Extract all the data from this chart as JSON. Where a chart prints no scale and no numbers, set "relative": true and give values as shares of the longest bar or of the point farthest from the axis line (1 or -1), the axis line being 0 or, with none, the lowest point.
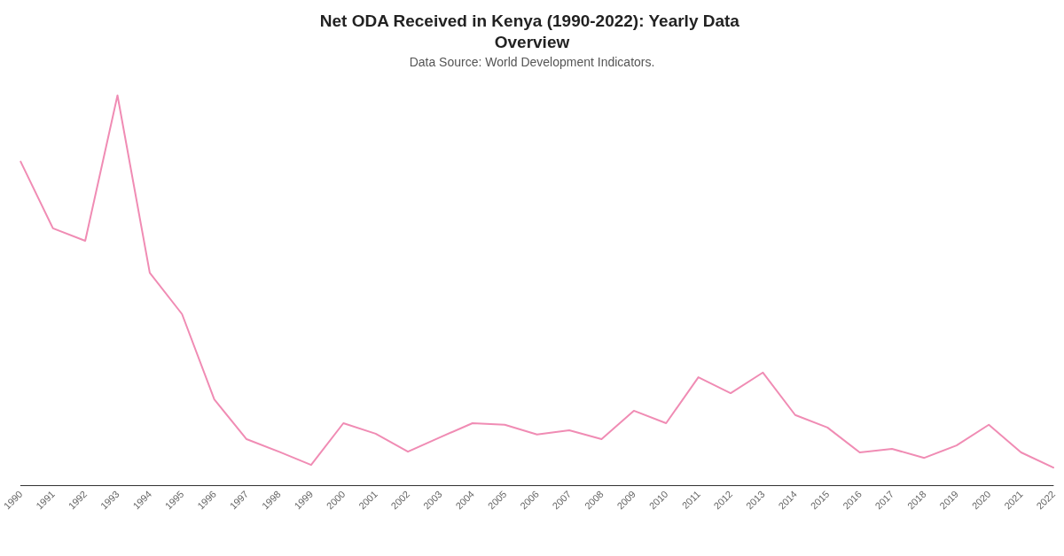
{
  "chart_data": {
    "type": "line",
    "title": "Net ODA Received in Kenya (1990-2022): Yearly Data Overview",
    "subtitle": "Data Source: World Development Indicators.",
    "relative": true,
    "marker": "none",
    "grid": false,
    "categories": [
      "1990",
      "1991",
      "1992",
      "1993",
      "1994",
      "1995",
      "1996",
      "1997",
      "1998",
      "1999",
      "2000",
      "2001",
      "2002",
      "2003",
      "2004",
      "2005",
      "2006",
      "2007",
      "2008",
      "2009",
      "2010",
      "2011",
      "2012",
      "2013",
      "2014",
      "2015",
      "2016",
      "2017",
      "2018",
      "2019",
      "2020",
      "2021",
      "2022"
    ],
    "series": [
      {
        "color": "#f08cb4",
        "values": [
          0.83,
          0.659,
          0.627,
          1,
          0.545,
          0.439,
          0.22,
          0.118,
          0.086,
          0.052,
          0.159,
          0.132,
          0.086,
          0.123,
          0.159,
          0.155,
          0.13,
          0.141,
          0.118,
          0.191,
          0.159,
          0.277,
          0.236,
          0.289,
          0.18,
          0.148,
          0.084,
          0.093,
          0.07,
          0.102,
          0.155,
          0.084,
          0.045
        ]
      }
    ]
  }
}
